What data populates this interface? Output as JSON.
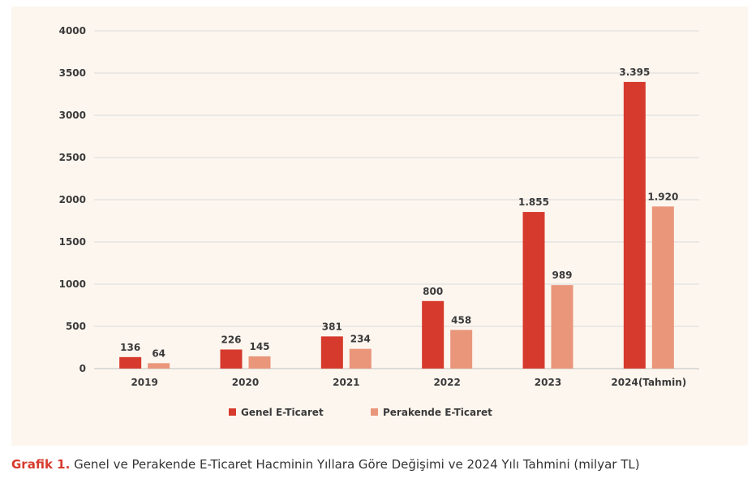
{
  "chart_data": {
    "type": "bar",
    "categories": [
      "2019",
      "2020",
      "2021",
      "2022",
      "2023",
      "2024(Tahmin)"
    ],
    "series": [
      {
        "name": "Genel E-Ticaret",
        "color": "#d63a2c",
        "values": [
          136,
          226,
          381,
          800,
          1855,
          3395
        ],
        "labels": [
          "136",
          "226",
          "381",
          "800",
          "1.855",
          "3.395"
        ]
      },
      {
        "name": "Perakende E-Ticaret",
        "color": "#e9967a",
        "values": [
          64,
          145,
          234,
          458,
          989,
          1920
        ],
        "labels": [
          "64",
          "145",
          "234",
          "458",
          "989",
          "1.920"
        ]
      }
    ],
    "ylim": [
      0,
      4000
    ],
    "yticks": [
      0,
      500,
      1000,
      1500,
      2000,
      2500,
      3000,
      3500,
      4000
    ],
    "grid": true,
    "legend": "bottom-center",
    "xlabel": "",
    "ylabel": ""
  },
  "caption": {
    "prefix": "Grafik 1.",
    "text": " Genel ve Perakende E-Ticaret Hacminin Yıllara Göre Değişimi ve 2024 Yılı Tahmini (milyar TL)"
  }
}
